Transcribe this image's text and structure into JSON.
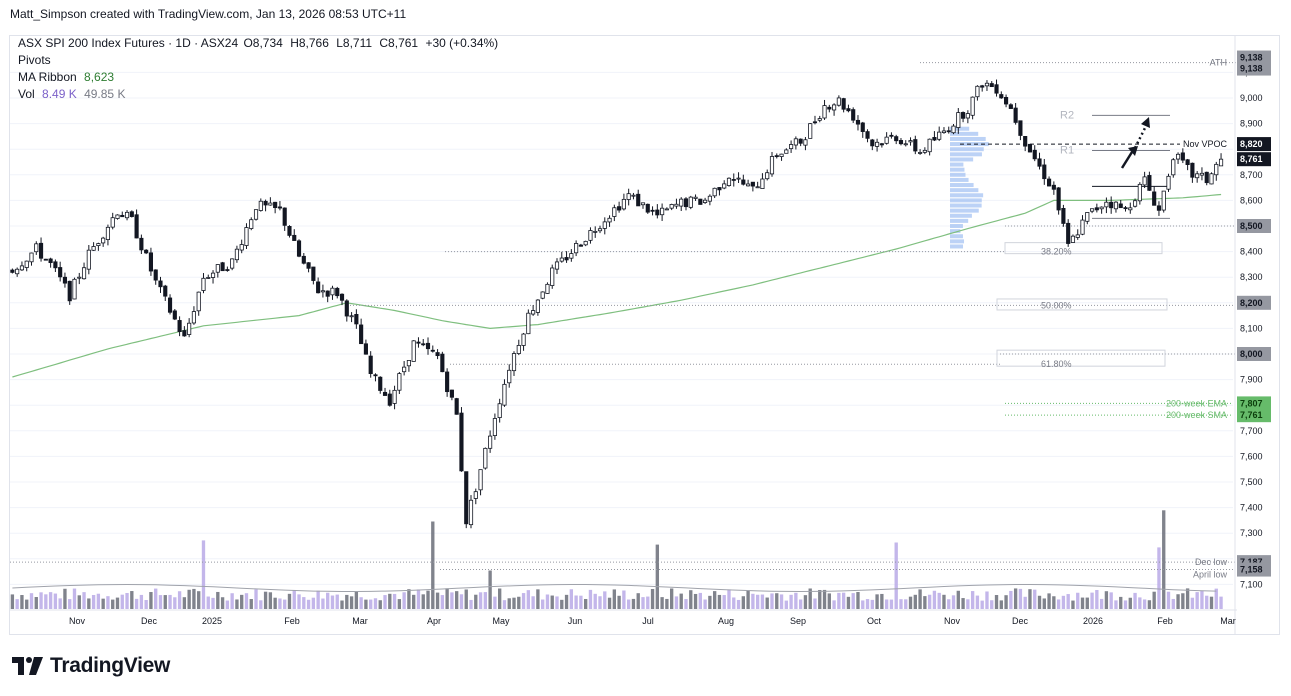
{
  "header": {
    "attribution": "Matt_Simpson created with TradingView.com, Jan 13, 2026 08:53 UTC+11"
  },
  "legend": {
    "symbol": "ASX SPI 200 Index Futures · 1D · ASX24",
    "open": "O8,734",
    "high": "H8,766",
    "low": "L8,711",
    "close": "C8,761",
    "change": "+30 (+0.34%)",
    "pivots": "Pivots",
    "ma_label": "MA Ribbon",
    "ma_value": "8,623",
    "vol_label": "Vol",
    "vol_value1": "8.49 K",
    "vol_value2": "49.85 K"
  },
  "brand": {
    "name": "TradingView",
    "logo_icon": "tradingview-logo-icon"
  },
  "colors": {
    "up": "#131722",
    "down": "#131722",
    "ma": "#7fbf7f",
    "vol": "#b8a9e6",
    "vol_dark": "#6a6d78",
    "profile": "#90b4f0",
    "grid": "#f0f3fa",
    "fib_line": "#9598a1",
    "ema_label": "#66bb6a"
  },
  "chart_data": {
    "type": "candlestick",
    "title": "ASX SPI 200 Index Futures · 1D · ASX24",
    "x_ticks": [
      "Nov",
      "Dec",
      "2025",
      "Feb",
      "Mar",
      "Apr",
      "May",
      "Jun",
      "Jul",
      "Aug",
      "Sep",
      "Oct",
      "Nov",
      "Dec",
      "2026",
      "Feb",
      "Mar"
    ],
    "y_ticks": [
      "9,100",
      "9,000",
      "8,900",
      "8,700",
      "8,600",
      "8,400",
      "8,300",
      "8,100",
      "7,900",
      "7,700",
      "7,600",
      "7,500",
      "7,400",
      "7,300",
      "7,100"
    ],
    "ylim": [
      7100,
      9150
    ],
    "last_close": 8761,
    "price_path": [
      [
        0,
        8330
      ],
      [
        5,
        8410
      ],
      [
        8,
        8350
      ],
      [
        12,
        8230
      ],
      [
        16,
        8390
      ],
      [
        22,
        8560
      ],
      [
        25,
        8520
      ],
      [
        30,
        8280
      ],
      [
        36,
        8060
      ],
      [
        40,
        8300
      ],
      [
        46,
        8360
      ],
      [
        51,
        8580
      ],
      [
        56,
        8560
      ],
      [
        60,
        8380
      ],
      [
        64,
        8250
      ],
      [
        68,
        8240
      ],
      [
        72,
        8100
      ],
      [
        75,
        7920
      ],
      [
        79,
        7820
      ],
      [
        84,
        8040
      ],
      [
        89,
        7990
      ],
      [
        93,
        7760
      ],
      [
        95,
        7350
      ],
      [
        97,
        7480
      ],
      [
        101,
        7760
      ],
      [
        104,
        7950
      ],
      [
        108,
        8150
      ],
      [
        113,
        8320
      ],
      [
        118,
        8420
      ],
      [
        124,
        8530
      ],
      [
        129,
        8620
      ],
      [
        135,
        8540
      ],
      [
        140,
        8590
      ],
      [
        145,
        8600
      ],
      [
        150,
        8700
      ],
      [
        155,
        8640
      ],
      [
        160,
        8780
      ],
      [
        165,
        8830
      ],
      [
        170,
        8970
      ],
      [
        173,
        8990
      ],
      [
        176,
        8930
      ],
      [
        180,
        8820
      ],
      [
        185,
        8850
      ],
      [
        190,
        8790
      ],
      [
        195,
        8870
      ],
      [
        200,
        8960
      ],
      [
        203,
        9060
      ],
      [
        206,
        9040
      ],
      [
        209,
        8960
      ],
      [
        212,
        8830
      ],
      [
        215,
        8730
      ],
      [
        218,
        8640
      ],
      [
        221,
        8420
      ],
      [
        225,
        8540
      ],
      [
        229,
        8600
      ],
      [
        233,
        8560
      ],
      [
        237,
        8680
      ],
      [
        240,
        8560
      ],
      [
        243,
        8780
      ],
      [
        247,
        8700
      ],
      [
        250,
        8680
      ],
      [
        253,
        8761
      ]
    ],
    "ma_path": [
      [
        0,
        7910
      ],
      [
        20,
        8020
      ],
      [
        40,
        8110
      ],
      [
        60,
        8150
      ],
      [
        70,
        8200
      ],
      [
        80,
        8170
      ],
      [
        90,
        8130
      ],
      [
        100,
        8100
      ],
      [
        110,
        8115
      ],
      [
        125,
        8160
      ],
      [
        140,
        8210
      ],
      [
        155,
        8270
      ],
      [
        170,
        8340
      ],
      [
        185,
        8410
      ],
      [
        200,
        8490
      ],
      [
        212,
        8550
      ],
      [
        218,
        8600
      ],
      [
        230,
        8600
      ],
      [
        245,
        8610
      ],
      [
        253,
        8623
      ]
    ],
    "volume_spikes": [
      [
        40,
        0.98
      ],
      [
        88,
        1.25
      ],
      [
        100,
        0.55
      ],
      [
        135,
        0.92
      ],
      [
        185,
        0.95
      ],
      [
        240,
        0.88
      ],
      [
        241,
        1.41
      ]
    ],
    "levels": [
      {
        "label": "ATH",
        "price": 9138
      },
      {
        "label": "Nov VPOC",
        "price": 8820
      },
      {
        "label": "38.20%",
        "price": 8400
      },
      {
        "label": "50.00%",
        "price": 8190
      },
      {
        "label": "61.80%",
        "price": 7960
      },
      {
        "label": "200-week EMA",
        "price": 7807
      },
      {
        "label": "200-week SMA",
        "price": 7761
      },
      {
        "label": "Dec low",
        "price": 7187
      },
      {
        "label": "April low",
        "price": 7158
      },
      {
        "label": "R2",
        "price": 8932
      },
      {
        "label": "R1",
        "price": 8795
      }
    ],
    "price_tags": [
      {
        "text": "9,138",
        "price": 9158,
        "style": "gray"
      },
      {
        "text": "9,138",
        "price": 9115,
        "style": "gray"
      },
      {
        "text": "8,820",
        "price": 8820,
        "style": "dark"
      },
      {
        "text": "8,761",
        "price": 8761,
        "style": "dark"
      },
      {
        "text": "8,500",
        "price": 8500,
        "style": "gray"
      },
      {
        "text": "8,200",
        "price": 8200,
        "style": "gray"
      },
      {
        "text": "8,000",
        "price": 8000,
        "style": "gray"
      },
      {
        "text": "7,807",
        "price": 7807,
        "style": "green"
      },
      {
        "text": "7,761",
        "price": 7761,
        "style": "green"
      },
      {
        "text": "7,187",
        "price": 7187,
        "style": "gray"
      },
      {
        "text": "7,158",
        "price": 7158,
        "style": "gray"
      }
    ]
  }
}
